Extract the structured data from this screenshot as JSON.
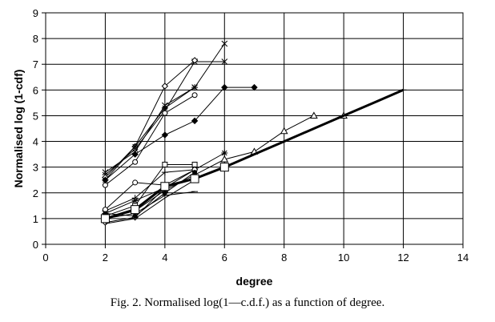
{
  "caption": "Fig. 2.  Normalised log(1—c.d.f.) as a function of degree.",
  "chart_data": {
    "type": "line",
    "xlabel": "degree",
    "ylabel": "Normalised log (1-cdf)",
    "xlim": [
      0,
      14
    ],
    "ylim": [
      0,
      9
    ],
    "xticks": [
      0,
      2,
      4,
      6,
      8,
      10,
      12,
      14
    ],
    "yticks": [
      0,
      1,
      2,
      3,
      4,
      5,
      6,
      7,
      8,
      9
    ],
    "grid": true,
    "legend": "none",
    "series": [
      {
        "marker": "x",
        "color": "#000000",
        "width": 1,
        "x": [
          2,
          3,
          4,
          5,
          6
        ],
        "y": [
          2.8,
          3.6,
          5.4,
          6.1,
          7.8
        ]
      },
      {
        "marker": "x",
        "color": "#000000",
        "width": 1,
        "x": [
          2,
          3,
          4,
          5,
          6
        ],
        "y": [
          2.7,
          3.7,
          5.2,
          7.1,
          7.1
        ]
      },
      {
        "marker": "diamond-open",
        "color": "#000000",
        "width": 1,
        "x": [
          2,
          3,
          4,
          5
        ],
        "y": [
          2.6,
          3.8,
          6.15,
          7.15
        ]
      },
      {
        "marker": "circle-open",
        "color": "#000000",
        "width": 1,
        "x": [
          2,
          3,
          4,
          5
        ],
        "y": [
          2.3,
          3.2,
          5.1,
          5.8
        ]
      },
      {
        "marker": "diamond-filled",
        "color": "#000000",
        "width": 1,
        "x": [
          2,
          3,
          4,
          5,
          6,
          7
        ],
        "y": [
          2.5,
          3.5,
          4.25,
          4.8,
          6.1,
          6.1
        ]
      },
      {
        "marker": "star",
        "color": "#000000",
        "width": 1,
        "x": [
          2,
          3,
          4,
          5
        ],
        "y": [
          2.5,
          3.8,
          5.3,
          6.1
        ]
      },
      {
        "marker": "square-open",
        "color": "#000000",
        "width": 1,
        "x": [
          2,
          3,
          4,
          5
        ],
        "y": [
          1.1,
          1.5,
          3.1,
          3.1
        ]
      },
      {
        "marker": "triangle-open",
        "color": "#000000",
        "width": 1,
        "x": [
          2,
          3,
          4,
          5,
          6,
          7,
          8,
          9,
          10
        ],
        "y": [
          1.0,
          1.3,
          2.1,
          2.7,
          3.3,
          3.6,
          4.4,
          5.0,
          5.0
        ]
      },
      {
        "marker": "star",
        "color": "#000000",
        "width": 1,
        "x": [
          2,
          3,
          4,
          5,
          6
        ],
        "y": [
          1.2,
          1.7,
          2.2,
          2.9,
          3.55
        ]
      },
      {
        "marker": "plus",
        "color": "#000000",
        "width": 1,
        "x": [
          2,
          3,
          4,
          5
        ],
        "y": [
          1.3,
          1.8,
          2.8,
          2.9
        ]
      },
      {
        "marker": "circle-open",
        "color": "#000000",
        "width": 1,
        "x": [
          2,
          3,
          4,
          5
        ],
        "y": [
          1.35,
          2.4,
          2.3,
          2.9
        ]
      },
      {
        "marker": "diamond-open",
        "color": "#000000",
        "width": 1,
        "x": [
          2,
          3,
          4,
          5
        ],
        "y": [
          0.85,
          1.05,
          2.2,
          2.6
        ]
      },
      {
        "marker": "dash",
        "color": "#000000",
        "width": 1,
        "x": [
          2,
          3,
          4,
          5
        ],
        "y": [
          1.0,
          1.2,
          1.9,
          2.05
        ]
      },
      {
        "marker": "circle-filled",
        "color": "#000000",
        "width": 1,
        "x": [
          2,
          3,
          4,
          5
        ],
        "y": [
          1.2,
          1.1,
          2.0,
          2.8
        ]
      },
      {
        "marker": "none",
        "color": "#000000",
        "width": 1,
        "x": [
          2,
          3,
          4,
          5
        ],
        "y": [
          0.8,
          1.0,
          1.8,
          2.5
        ]
      },
      {
        "marker": "square-open-large",
        "color": "#000000",
        "width": 3,
        "x": [
          2,
          3,
          4,
          5,
          6,
          7,
          8,
          9,
          10,
          11,
          12
        ],
        "y": [
          1.0,
          1.35,
          2.25,
          2.55,
          3.0,
          3.5,
          4.0,
          4.5,
          5.0,
          5.5,
          6.0
        ]
      }
    ]
  }
}
